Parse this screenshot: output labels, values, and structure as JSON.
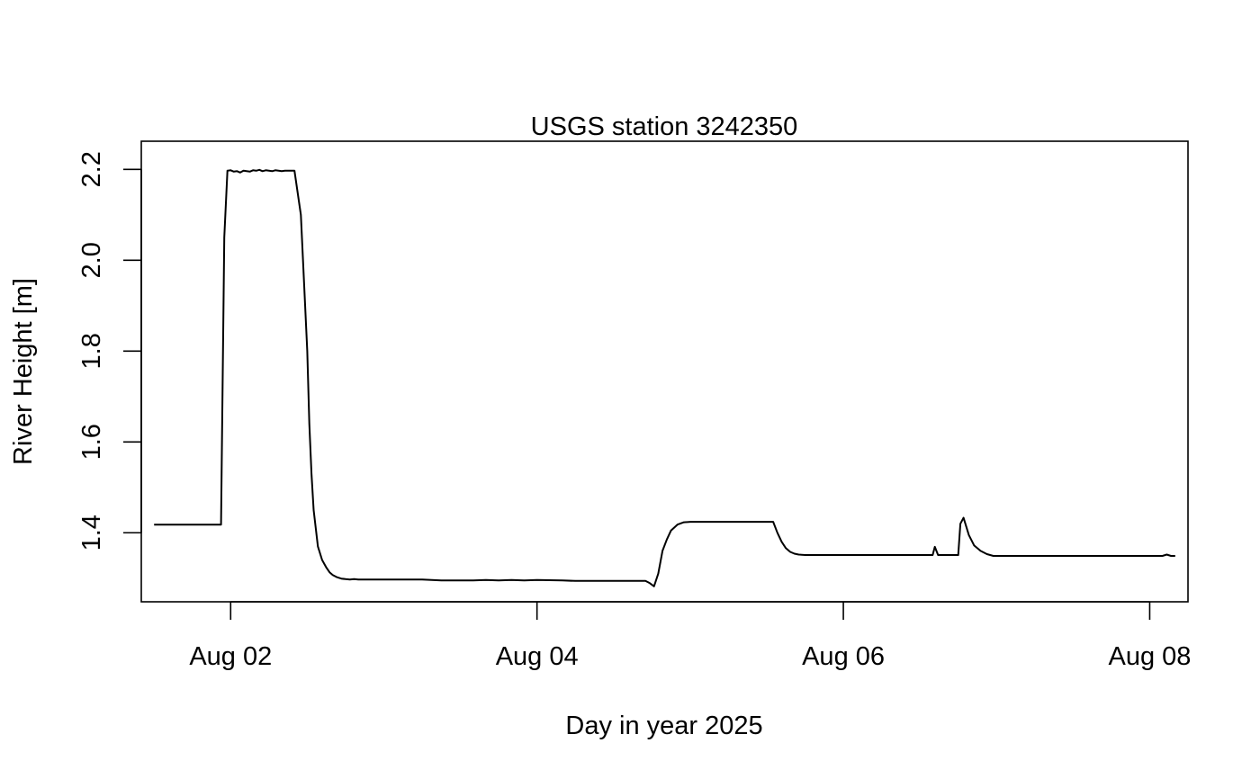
{
  "chart_data": {
    "type": "line",
    "title": "USGS station 3242350",
    "xlabel": "Day in year 2025",
    "ylabel": "River Height [m]",
    "x_unit": "date",
    "xlim": [
      "2025-08-01T10:00",
      "2025-08-08T06:00"
    ],
    "ylim": [
      1.248,
      2.262
    ],
    "x_ticks": [
      {
        "value": "2025-08-02T00:00",
        "label": "Aug 02"
      },
      {
        "value": "2025-08-04T00:00",
        "label": "Aug 04"
      },
      {
        "value": "2025-08-06T00:00",
        "label": "Aug 06"
      },
      {
        "value": "2025-08-08T00:00",
        "label": "Aug 08"
      }
    ],
    "y_ticks": [
      {
        "value": 1.4,
        "label": "1.4"
      },
      {
        "value": 1.6,
        "label": "1.6"
      },
      {
        "value": 1.8,
        "label": "1.8"
      },
      {
        "value": 2.0,
        "label": "2.0"
      },
      {
        "value": 2.2,
        "label": "2.2"
      }
    ],
    "grid": false,
    "line_color": "#000000",
    "series": [
      {
        "x": [
          "2025-08-01T12:00",
          "2025-08-01T16:00",
          "2025-08-01T20:00",
          "2025-08-01T22:00",
          "2025-08-01T22:30",
          "2025-08-01T23:00",
          "2025-08-01T23:30",
          "2025-08-02T00:00",
          "2025-08-02T00:30",
          "2025-08-02T01:00",
          "2025-08-02T01:30",
          "2025-08-02T02:00",
          "2025-08-02T02:30",
          "2025-08-02T03:00",
          "2025-08-02T03:30",
          "2025-08-02T04:00",
          "2025-08-02T04:30",
          "2025-08-02T05:00",
          "2025-08-02T05:30",
          "2025-08-02T06:00",
          "2025-08-02T06:30",
          "2025-08-02T07:00",
          "2025-08-02T07:30",
          "2025-08-02T08:00",
          "2025-08-02T08:30",
          "2025-08-02T09:00",
          "2025-08-02T09:30",
          "2025-08-02T10:00",
          "2025-08-02T11:00",
          "2025-08-02T12:00",
          "2025-08-02T12:20",
          "2025-08-02T12:40",
          "2025-08-02T13:00",
          "2025-08-02T13:40",
          "2025-08-02T14:20",
          "2025-08-02T15:00",
          "2025-08-02T15:30",
          "2025-08-02T16:00",
          "2025-08-02T16:40",
          "2025-08-02T17:20",
          "2025-08-02T18:00",
          "2025-08-02T18:40",
          "2025-08-02T19:20",
          "2025-08-02T20:00",
          "2025-08-02T21:00",
          "2025-08-02T22:00",
          "2025-08-02T23:00",
          "2025-08-03T00:00",
          "2025-08-03T02:00",
          "2025-08-03T04:00",
          "2025-08-03T06:00",
          "2025-08-03T09:00",
          "2025-08-03T12:00",
          "2025-08-03T14:00",
          "2025-08-03T16:00",
          "2025-08-03T18:00",
          "2025-08-03T20:00",
          "2025-08-03T22:00",
          "2025-08-04T00:00",
          "2025-08-04T04:00",
          "2025-08-04T06:00",
          "2025-08-04T08:00",
          "2025-08-04T12:00",
          "2025-08-04T16:00",
          "2025-08-04T17:00",
          "2025-08-04T17:40",
          "2025-08-04T18:20",
          "2025-08-04T19:00",
          "2025-08-04T19:40",
          "2025-08-04T20:20",
          "2025-08-04T21:00",
          "2025-08-04T22:00",
          "2025-08-04T23:00",
          "2025-08-05T00:00",
          "2025-08-05T12:00",
          "2025-08-05T13:00",
          "2025-08-05T13:40",
          "2025-08-05T14:20",
          "2025-08-05T15:00",
          "2025-08-05T15:40",
          "2025-08-05T16:20",
          "2025-08-05T17:00",
          "2025-08-05T18:00",
          "2025-08-06T00:00",
          "2025-08-06T12:00",
          "2025-08-06T14:00",
          "2025-08-06T14:20",
          "2025-08-06T14:50",
          "2025-08-06T15:20",
          "2025-08-06T18:00",
          "2025-08-06T18:20",
          "2025-08-06T18:50",
          "2025-08-06T19:40",
          "2025-08-06T20:30",
          "2025-08-06T21:30",
          "2025-08-06T22:30",
          "2025-08-06T23:30",
          "2025-08-07T00:00",
          "2025-08-07T12:00",
          "2025-08-08T00:00",
          "2025-08-08T02:00",
          "2025-08-08T02:40",
          "2025-08-08T03:20",
          "2025-08-08T04:00"
        ],
        "y": [
          1.418,
          1.418,
          1.418,
          1.418,
          1.418,
          2.05,
          2.197,
          2.198,
          2.195,
          2.196,
          2.193,
          2.197,
          2.196,
          2.195,
          2.198,
          2.197,
          2.199,
          2.196,
          2.198,
          2.197,
          2.196,
          2.198,
          2.197,
          2.196,
          2.197,
          2.197,
          2.197,
          2.197,
          2.1,
          1.8,
          1.64,
          1.53,
          1.45,
          1.37,
          1.34,
          1.323,
          1.313,
          1.307,
          1.302,
          1.299,
          1.298,
          1.297,
          1.298,
          1.297,
          1.297,
          1.297,
          1.297,
          1.297,
          1.297,
          1.297,
          1.297,
          1.295,
          1.295,
          1.295,
          1.296,
          1.295,
          1.296,
          1.295,
          1.296,
          1.295,
          1.294,
          1.294,
          1.294,
          1.294,
          1.294,
          1.289,
          1.282,
          1.31,
          1.36,
          1.385,
          1.405,
          1.418,
          1.423,
          1.424,
          1.424,
          1.424,
          1.4,
          1.38,
          1.366,
          1.358,
          1.354,
          1.352,
          1.351,
          1.351,
          1.351,
          1.351,
          1.369,
          1.351,
          1.351,
          1.351,
          1.42,
          1.433,
          1.395,
          1.372,
          1.36,
          1.353,
          1.349,
          1.349,
          1.349,
          1.349,
          1.349,
          1.352,
          1.349,
          1.349
        ]
      }
    ]
  }
}
